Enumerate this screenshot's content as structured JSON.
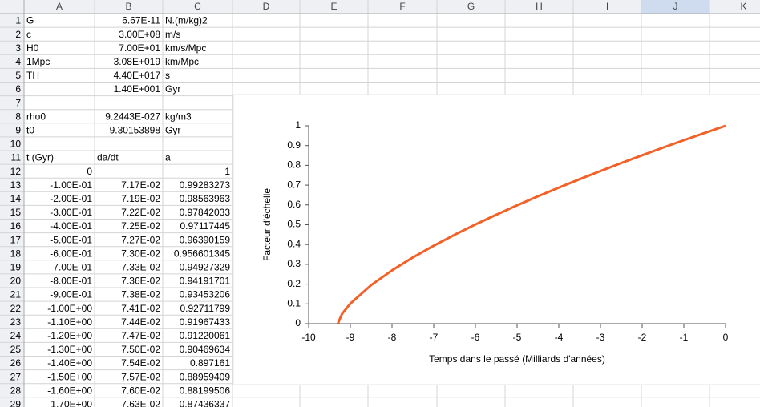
{
  "columns": [
    "A",
    "B",
    "C",
    "D",
    "E",
    "F",
    "G",
    "H",
    "I",
    "J",
    "K"
  ],
  "rows": [
    {
      "n": 1,
      "cells": [
        "G",
        "6.67E-11",
        "N.(m/kg)2"
      ]
    },
    {
      "n": 2,
      "cells": [
        "c",
        "3.00E+08",
        "m/s"
      ]
    },
    {
      "n": 3,
      "cells": [
        "H0",
        "7.00E+01",
        "km/s/Mpc"
      ]
    },
    {
      "n": 4,
      "cells": [
        "1Mpc",
        "3.08E+019",
        "km/Mpc"
      ]
    },
    {
      "n": 5,
      "cells": [
        "TH",
        "4.40E+017",
        "s"
      ]
    },
    {
      "n": 6,
      "cells": [
        null,
        "1.40E+001",
        "Gyr"
      ]
    },
    {
      "n": 7,
      "cells": [
        null,
        null,
        null
      ]
    },
    {
      "n": 8,
      "cells": [
        "rho0",
        "9.2443E-027",
        "kg/m3"
      ]
    },
    {
      "n": 9,
      "cells": [
        "t0",
        "9.30153898",
        "Gyr"
      ]
    },
    {
      "n": 10,
      "cells": [
        null,
        null,
        null
      ]
    },
    {
      "n": 11,
      "cells": [
        "t (Gyr)",
        "da/dt",
        "a"
      ]
    },
    {
      "n": 12,
      "cells": [
        "0",
        null,
        "1"
      ]
    },
    {
      "n": 13,
      "cells": [
        "-1.00E-01",
        "7.17E-02",
        "0.99283273"
      ]
    },
    {
      "n": 14,
      "cells": [
        "-2.00E-01",
        "7.19E-02",
        "0.98563963"
      ]
    },
    {
      "n": 15,
      "cells": [
        "-3.00E-01",
        "7.22E-02",
        "0.97842033"
      ]
    },
    {
      "n": 16,
      "cells": [
        "-4.00E-01",
        "7.25E-02",
        "0.97117445"
      ]
    },
    {
      "n": 17,
      "cells": [
        "-5.00E-01",
        "7.27E-02",
        "0.96390159"
      ]
    },
    {
      "n": 18,
      "cells": [
        "-6.00E-01",
        "7.30E-02",
        "0.956601345"
      ]
    },
    {
      "n": 19,
      "cells": [
        "-7.00E-01",
        "7.33E-02",
        "0.94927329"
      ]
    },
    {
      "n": 20,
      "cells": [
        "-8.00E-01",
        "7.36E-02",
        "0.94191701"
      ]
    },
    {
      "n": 21,
      "cells": [
        "-9.00E-01",
        "7.38E-02",
        "0.93453206"
      ]
    },
    {
      "n": 22,
      "cells": [
        "-1.00E+00",
        "7.41E-02",
        "0.92711799"
      ]
    },
    {
      "n": 23,
      "cells": [
        "-1.10E+00",
        "7.44E-02",
        "0.91967433"
      ]
    },
    {
      "n": 24,
      "cells": [
        "-1.20E+00",
        "7.47E-02",
        "0.91220061"
      ]
    },
    {
      "n": 25,
      "cells": [
        "-1.30E+00",
        "7.50E-02",
        "0.90469634"
      ]
    },
    {
      "n": 26,
      "cells": [
        "-1.40E+00",
        "7.54E-02",
        "0.897161"
      ]
    },
    {
      "n": 27,
      "cells": [
        "-1.50E+00",
        "7.57E-02",
        "0.88959409"
      ]
    },
    {
      "n": 28,
      "cells": [
        "-1.60E+00",
        "7.60E-02",
        "0.88199506"
      ]
    },
    {
      "n": 29,
      "cells": [
        "-1.70E+00",
        "7.63E-02",
        "0.87436337"
      ]
    }
  ],
  "chart_data": {
    "type": "line",
    "x_label": "Temps dans le passé (Milliards d'années)",
    "y_label": "Facteur d'échelle",
    "x": [
      -9.3,
      -9.2,
      -9,
      -8.5,
      -8,
      -7.5,
      -7,
      -6.5,
      -6,
      -5.5,
      -5,
      -4.5,
      -4,
      -3.5,
      -3,
      -2.5,
      -2,
      -1.5,
      -1,
      -0.5,
      0
    ],
    "values": [
      0,
      0.0492,
      0.1017,
      0.1951,
      0.2695,
      0.3347,
      0.3941,
      0.4493,
      0.5013,
      0.5507,
      0.598,
      0.6435,
      0.6874,
      0.73,
      0.7714,
      0.8117,
      0.851,
      0.8896,
      0.9271,
      0.9638,
      1
    ],
    "color": "#f26128",
    "xlim": [
      -10,
      0
    ],
    "xticks": [
      -10,
      -9,
      -8,
      -7,
      -6,
      -5,
      -4,
      -3,
      -2,
      -1,
      0
    ],
    "ylim": [
      0,
      1
    ],
    "yticks": [
      0,
      0.1,
      0.2,
      0.3,
      0.4,
      0.5,
      0.6,
      0.7,
      0.8,
      0.9,
      1
    ],
    "grid": false
  }
}
